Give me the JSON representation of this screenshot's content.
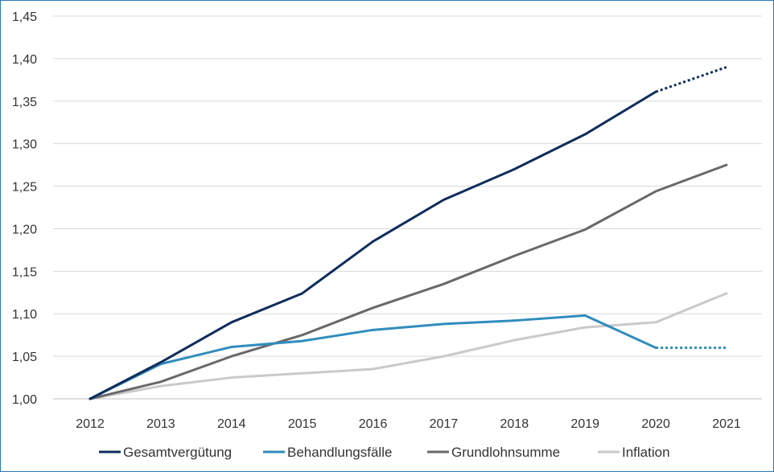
{
  "chart_data": {
    "type": "line",
    "title": "",
    "xlabel": "",
    "ylabel": "",
    "categories": [
      "2012",
      "2013",
      "2014",
      "2015",
      "2016",
      "2017",
      "2018",
      "2019",
      "2020",
      "2021"
    ],
    "ylim": [
      1.0,
      1.45
    ],
    "ytick_values": [
      1.0,
      1.05,
      1.1,
      1.15,
      1.2,
      1.25,
      1.3,
      1.35,
      1.4,
      1.45
    ],
    "ytick_labels": [
      "1,00",
      "1,05",
      "1,10",
      "1,15",
      "1,20",
      "1,25",
      "1,30",
      "1,35",
      "1,40",
      "1,45"
    ],
    "grid": "horizontal",
    "legend_position": "bottom",
    "series": [
      {
        "name": "Gesamtvergütung",
        "color": "#0f2d5c",
        "values": [
          1.0,
          1.043,
          1.09,
          1.124,
          1.185,
          1.234,
          1.27,
          1.311,
          1.361,
          1.39
        ],
        "dotted_from_index": 8
      },
      {
        "name": "Behandlungsfälle",
        "color": "#2f8dbd",
        "values": [
          1.0,
          1.041,
          1.061,
          1.068,
          1.081,
          1.088,
          1.092,
          1.098,
          1.06,
          1.06
        ],
        "dotted_from_index": 8
      },
      {
        "name": "Grundlohnsumme",
        "color": "#686868",
        "values": [
          1.0,
          1.02,
          1.05,
          1.075,
          1.107,
          1.135,
          1.168,
          1.199,
          1.244,
          1.275
        ],
        "dotted_from_index": null
      },
      {
        "name": "Inflation",
        "color": "#cacaca",
        "values": [
          1.0,
          1.015,
          1.025,
          1.03,
          1.035,
          1.05,
          1.069,
          1.084,
          1.09,
          1.124
        ],
        "dotted_from_index": null
      }
    ]
  }
}
